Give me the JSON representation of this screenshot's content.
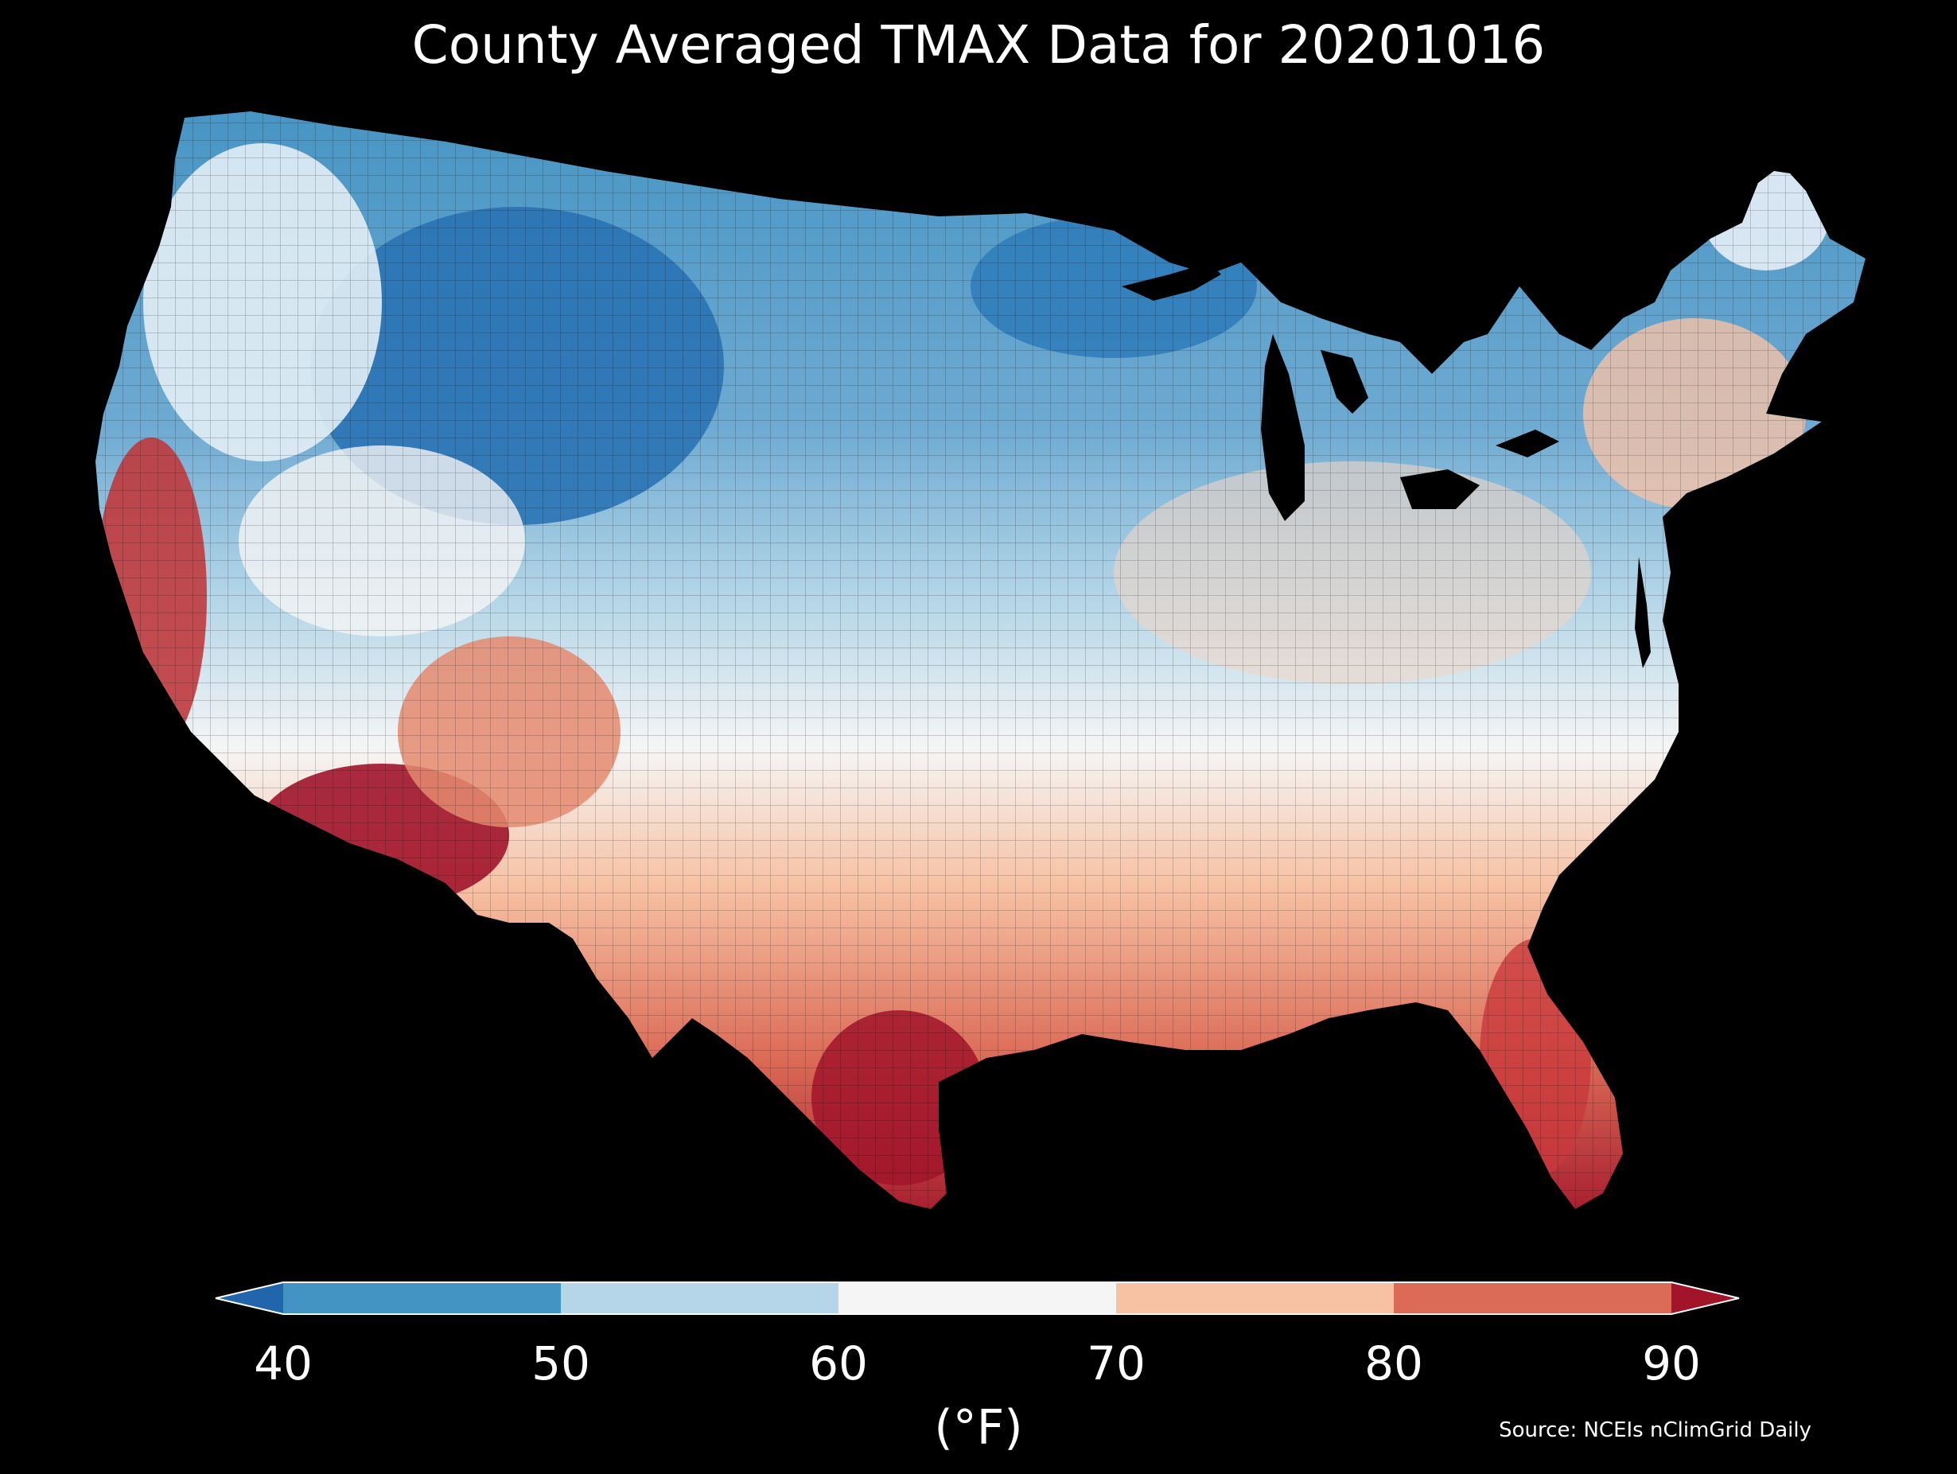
{
  "title": "County Averaged TMAX Data for 20201016",
  "colorbar": {
    "unit_label": "(°F)",
    "ticks": [
      "40",
      "50",
      "60",
      "70",
      "80",
      "90"
    ],
    "bins": [
      {
        "range": "<40",
        "color": "#2166ac"
      },
      {
        "range": "40-50",
        "color": "#4393c3"
      },
      {
        "range": "50-60",
        "color": "#b4d6e8"
      },
      {
        "range": "60-70",
        "color": "#f5f5f5"
      },
      {
        "range": "70-80",
        "color": "#f7c1a3"
      },
      {
        "range": "80-90",
        "color": "#db6a56"
      },
      {
        "range": ">90",
        "color": "#a1142a"
      }
    ],
    "extend": "both"
  },
  "source": "Source: NCEIs nClimGrid Daily",
  "map_data": {
    "type": "choropleth",
    "region": "Contiguous United States",
    "unit": "county",
    "variable": "TMAX",
    "regional_pattern": [
      {
        "area": "Northern Rockies / Montana",
        "color": "#2166ac"
      },
      {
        "area": "Northern Plains / Upper Midwest",
        "color": "#4393c3"
      },
      {
        "area": "Central Plains / Midwest",
        "color": "#b4d6e8"
      },
      {
        "area": "Ohio Valley / Great Basin",
        "color": "#f5f5f5"
      },
      {
        "area": "Mid-Atlantic / Northeast coast",
        "color": "#f7c1a3"
      },
      {
        "area": "Gulf Coast / Southeast",
        "color": "#db6a56"
      },
      {
        "area": "Southern Texas / Southern Arizona / Southern California",
        "color": "#a1142a"
      }
    ]
  }
}
